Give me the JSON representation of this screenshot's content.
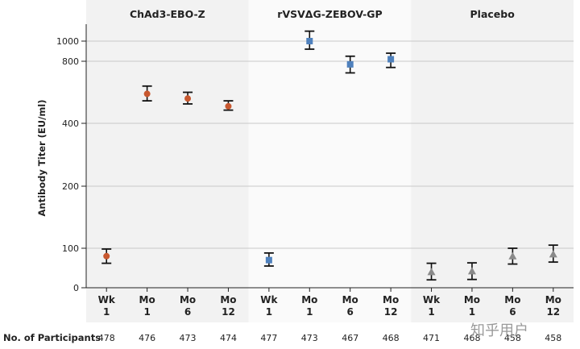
{
  "chart_data": {
    "type": "scatter",
    "ylabel": "Antibody Titer (EU/ml)",
    "y_ticks": [
      0,
      100,
      200,
      400,
      800,
      1000
    ],
    "y_scale": "piecewise (broken axis)",
    "grid": true,
    "row_label": "No. of Participants",
    "panels": [
      {
        "title": "ChAd3-EBO-Z",
        "color": "#c8582f",
        "marker": "circle",
        "background": "#f2f2f2",
        "points": [
          {
            "line1": "Wk",
            "line2": "1",
            "value": 80,
            "lo": 62,
            "hi": 98,
            "n": "478"
          },
          {
            "line1": "Mo",
            "line2": "1",
            "value": 590,
            "lo": 545,
            "hi": 640,
            "n": "476"
          },
          {
            "line1": "Mo",
            "line2": "6",
            "value": 560,
            "lo": 525,
            "hi": 600,
            "n": "473"
          },
          {
            "line1": "Mo",
            "line2": "12",
            "value": 510,
            "lo": 485,
            "hi": 545,
            "n": "474"
          }
        ]
      },
      {
        "title": "rVSVΔG-ZEBOV-GP",
        "color": "#4f81bd",
        "marker": "square",
        "background": "#fafafa",
        "points": [
          {
            "line1": "Wk",
            "line2": "1",
            "value": 70,
            "lo": 55,
            "hi": 88,
            "n": "477"
          },
          {
            "line1": "Mo",
            "line2": "1",
            "value": 1000,
            "lo": 920,
            "hi": 1095,
            "n": "473"
          },
          {
            "line1": "Mo",
            "line2": "6",
            "value": 780,
            "lo": 725,
            "hi": 850,
            "n": "467"
          },
          {
            "line1": "Mo",
            "line2": "12",
            "value": 820,
            "lo": 760,
            "hi": 880,
            "n": "468"
          }
        ]
      },
      {
        "title": "Placebo",
        "color": "#8a8a8a",
        "marker": "triangle",
        "background": "#f2f2f2",
        "points": [
          {
            "line1": "Wk",
            "line2": "1",
            "value": 40,
            "lo": 20,
            "hi": 62,
            "n": "471"
          },
          {
            "line1": "Mo",
            "line2": "1",
            "value": 42,
            "lo": 21,
            "hi": 63,
            "n": "468"
          },
          {
            "line1": "Mo",
            "line2": "6",
            "value": 80,
            "lo": 60,
            "hi": 100,
            "n": "458"
          },
          {
            "line1": "Mo",
            "line2": "12",
            "value": 85,
            "lo": 65,
            "hi": 105,
            "n": "458"
          }
        ]
      }
    ]
  },
  "watermark": "知乎用户"
}
